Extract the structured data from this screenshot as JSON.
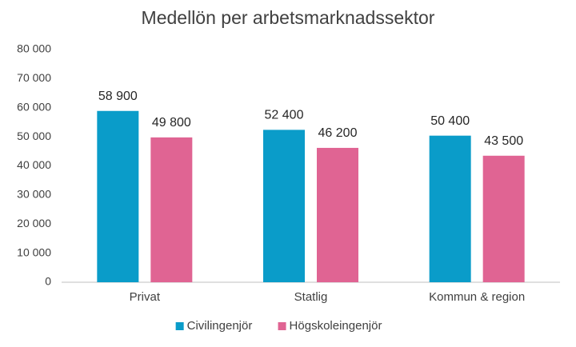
{
  "chart_data": {
    "type": "bar",
    "title": "Medellön per arbetsmarknadssektor",
    "categories": [
      "Privat",
      "Statlig",
      "Kommun & region"
    ],
    "series": [
      {
        "name": "Civilingenjör",
        "color": "#0a9cc9",
        "values": [
          58900,
          52400,
          50400
        ],
        "value_labels": [
          "58 900",
          "52 400",
          "50 400"
        ]
      },
      {
        "name": "Högskoleingenjör",
        "color": "#e06493",
        "values": [
          49800,
          46200,
          43500
        ],
        "value_labels": [
          "49 800",
          "46 200",
          "43 500"
        ]
      }
    ],
    "ylim": [
      0,
      80000
    ],
    "yticks": [
      {
        "value": 0,
        "label": "0"
      },
      {
        "value": 10000,
        "label": "10 000"
      },
      {
        "value": 20000,
        "label": "20 000"
      },
      {
        "value": 30000,
        "label": "30 000"
      },
      {
        "value": 40000,
        "label": "40 000"
      },
      {
        "value": 50000,
        "label": "50 000"
      },
      {
        "value": 60000,
        "label": "60 000"
      },
      {
        "value": 70000,
        "label": "70 000"
      },
      {
        "value": 80000,
        "label": "80 000"
      }
    ],
    "grid": false,
    "legend": "bottom"
  }
}
